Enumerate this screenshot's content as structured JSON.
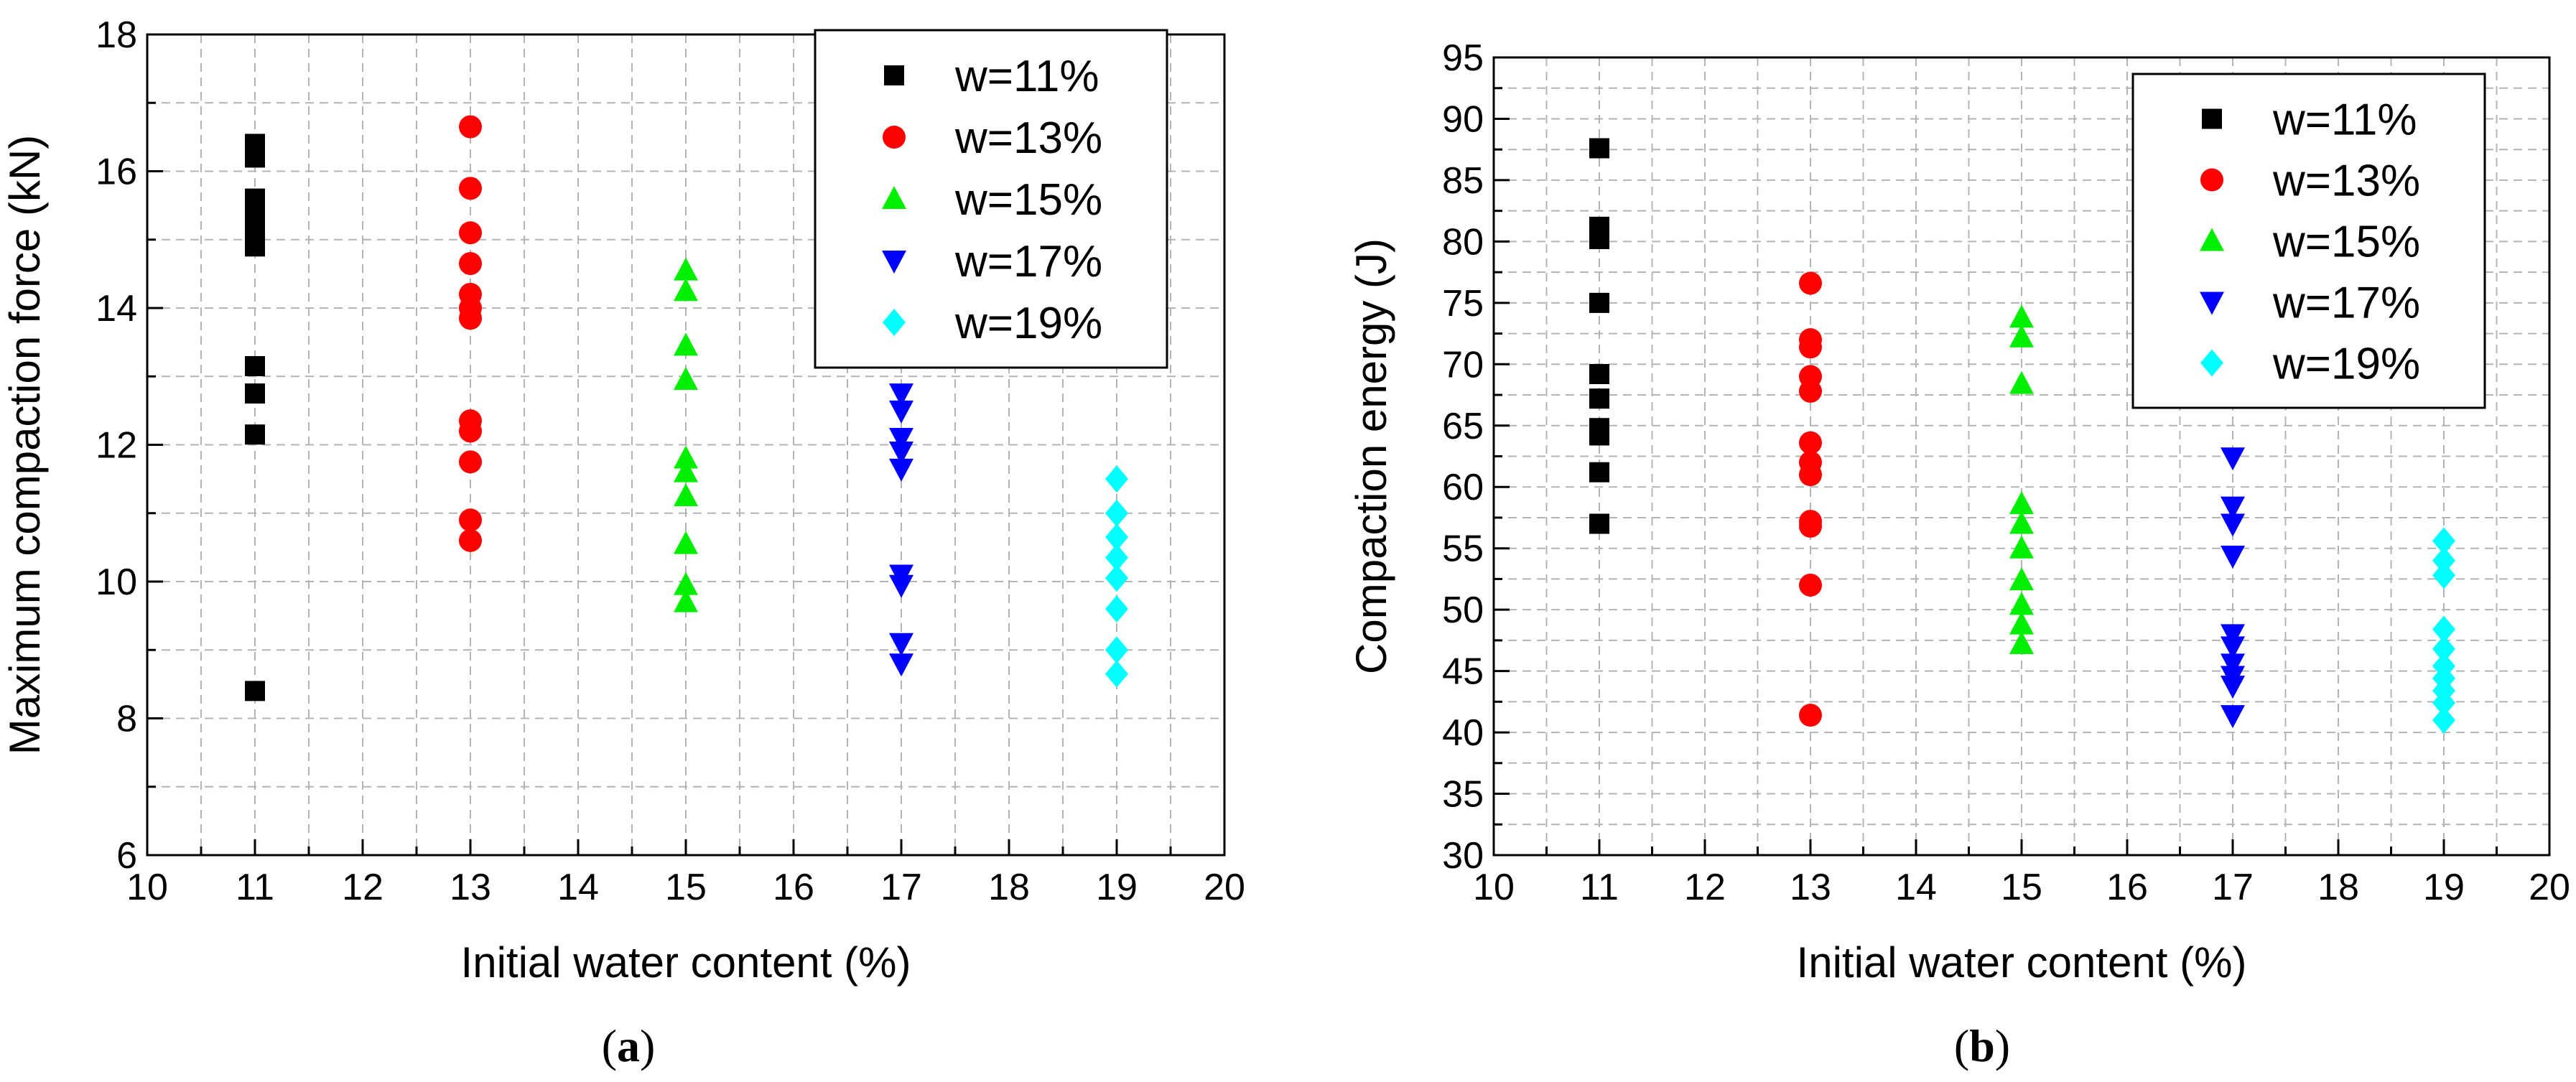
{
  "chart_data": [
    {
      "id": "a",
      "type": "scatter",
      "caption": "(a)",
      "caption_letter": "a",
      "xlabel": "Initial water content (%)",
      "ylabel": "Maximum compaction force (kN)",
      "xlim": [
        10,
        20
      ],
      "ylim": [
        6,
        18
      ],
      "xticks": [
        10,
        11,
        12,
        13,
        14,
        15,
        16,
        17,
        18,
        19,
        20
      ],
      "yticks": [
        6,
        8,
        10,
        12,
        14,
        16,
        18
      ],
      "grid": true,
      "legend_position": "top-right",
      "series": [
        {
          "name": "w=11%",
          "marker": "square",
          "color": "#000000",
          "x": 11,
          "values": [
            16.4,
            16.2,
            15.6,
            15.4,
            15.2,
            15.0,
            14.9,
            13.15,
            12.75,
            12.15,
            8.4
          ]
        },
        {
          "name": "w=13%",
          "marker": "circle",
          "color": "#ff0000",
          "x": 13,
          "values": [
            16.65,
            15.75,
            15.1,
            14.65,
            14.2,
            14.0,
            13.85,
            12.35,
            12.2,
            11.75,
            10.9,
            10.6
          ]
        },
        {
          "name": "w=15%",
          "marker": "triangle-up",
          "color": "#00ee00",
          "x": 15,
          "values": [
            14.55,
            14.25,
            13.45,
            12.95,
            11.8,
            11.6,
            11.25,
            10.55,
            9.95,
            9.7
          ]
        },
        {
          "name": "w=17%",
          "marker": "triangle-down",
          "color": "#0000ff",
          "x": 17,
          "values": [
            12.75,
            12.5,
            12.1,
            11.9,
            11.65,
            10.1,
            9.95,
            9.1,
            8.8
          ]
        },
        {
          "name": "w=19%",
          "marker": "diamond",
          "color": "#00ffff",
          "x": 19,
          "values": [
            11.5,
            11.0,
            10.65,
            10.35,
            10.05,
            9.6,
            9.0,
            8.65
          ]
        }
      ]
    },
    {
      "id": "b",
      "type": "scatter",
      "caption": "(b)",
      "caption_letter": "b",
      "xlabel": "Initial water content (%)",
      "ylabel": "Compaction energy (J)",
      "xlim": [
        10,
        20
      ],
      "ylim": [
        30,
        95
      ],
      "xticks": [
        10,
        11,
        12,
        13,
        14,
        15,
        16,
        17,
        18,
        19,
        20
      ],
      "yticks": [
        30,
        35,
        40,
        45,
        50,
        55,
        60,
        65,
        70,
        75,
        80,
        85,
        90,
        95
      ],
      "grid": true,
      "legend_position": "top-right",
      "series": [
        {
          "name": "w=11%",
          "marker": "square",
          "color": "#000000",
          "x": 11,
          "values": [
            87.6,
            81.2,
            80.2,
            75.0,
            69.2,
            67.2,
            64.8,
            64.2,
            61.2,
            57.0
          ]
        },
        {
          "name": "w=13%",
          "marker": "circle",
          "color": "#ff0000",
          "x": 13,
          "values": [
            76.6,
            72.0,
            71.4,
            69.0,
            67.8,
            63.6,
            62.0,
            61.0,
            57.2,
            56.8,
            52.0,
            41.4
          ]
        },
        {
          "name": "w=15%",
          "marker": "triangle-up",
          "color": "#00ee00",
          "x": 15,
          "values": [
            73.8,
            72.2,
            68.4,
            58.6,
            57.0,
            55.0,
            52.4,
            50.4,
            48.8,
            47.2
          ]
        },
        {
          "name": "w=17%",
          "marker": "triangle-down",
          "color": "#0000ff",
          "x": 17,
          "values": [
            62.4,
            58.4,
            57.0,
            54.4,
            48.0,
            47.0,
            45.6,
            44.6,
            43.8,
            41.4
          ]
        },
        {
          "name": "w=19%",
          "marker": "diamond",
          "color": "#00ffff",
          "x": 19,
          "values": [
            55.6,
            54.0,
            52.8,
            48.4,
            46.8,
            45.4,
            44.4,
            43.4,
            42.4,
            41.0
          ]
        }
      ]
    }
  ]
}
